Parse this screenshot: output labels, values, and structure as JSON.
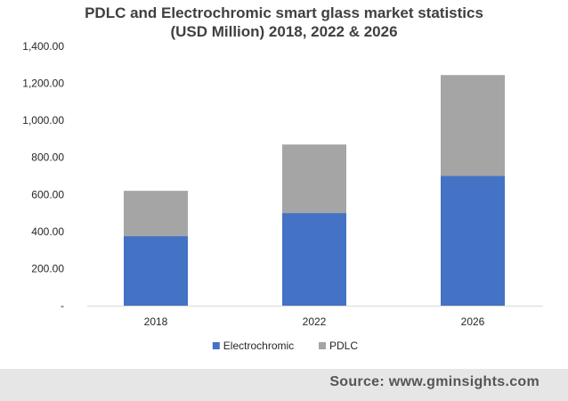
{
  "chart_data": {
    "type": "bar",
    "stacked": true,
    "title_lines": [
      "PDLC and Electrochromic smart glass market statistics",
      "(USD Million) 2018, 2022 & 2026"
    ],
    "categories": [
      "2018",
      "2022",
      "2026"
    ],
    "series": [
      {
        "name": "Electrochromic",
        "color": "#4472c4",
        "values": [
          375,
          500,
          700
        ]
      },
      {
        "name": "PDLC",
        "color": "#a5a5a5",
        "values": [
          245,
          370,
          545
        ]
      }
    ],
    "ylim": [
      0,
      1400
    ],
    "yticks": [
      0,
      200,
      400,
      600,
      800,
      1000,
      1200,
      1400
    ],
    "ytick_labels": [
      "-",
      "200.00",
      "400.00",
      "600.00",
      "800.00",
      "1,000.00",
      "1,200.00",
      "1,400.00"
    ],
    "legend_position": "bottom",
    "grid": false
  },
  "footer": {
    "source": "Source: www.gminsights.com"
  }
}
